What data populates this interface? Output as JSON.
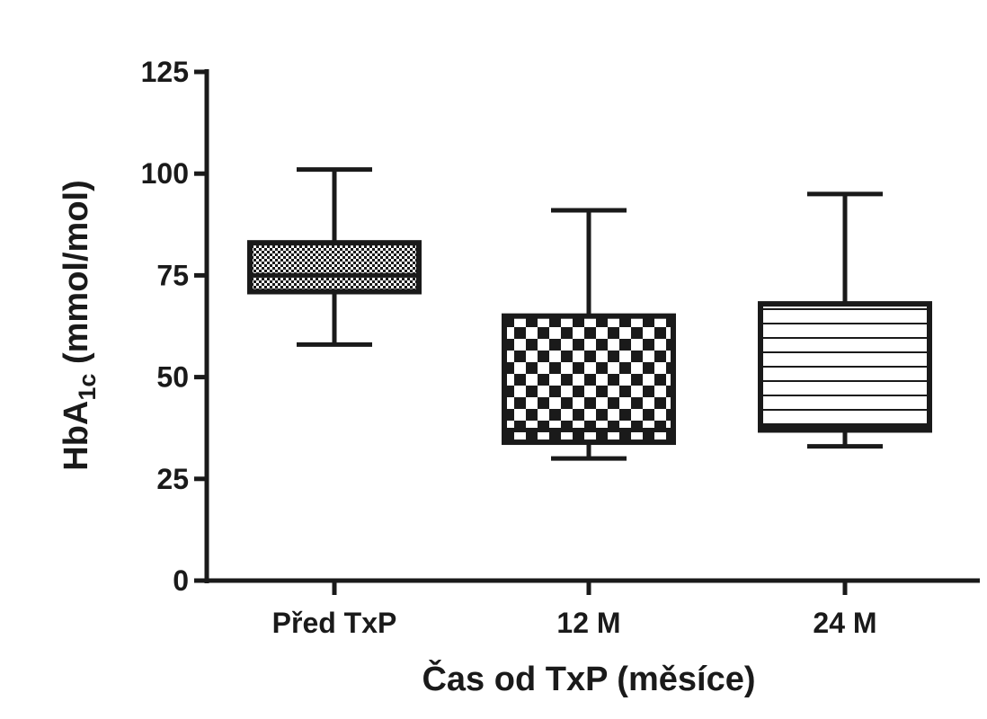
{
  "chart_data": {
    "type": "box",
    "xlabel": "Čas od TxP (měsíce)",
    "ylabel": {
      "main": "HbA",
      "subscript": "1c",
      "unit": " (mmol/mol)"
    },
    "ylim": [
      0,
      125
    ],
    "yticks": [
      0,
      25,
      50,
      75,
      100,
      125
    ],
    "categories": [
      "Před TxP",
      "12 M",
      "24 M"
    ],
    "boxes": [
      {
        "category": "Před TxP",
        "whisker_low": 58,
        "q1": 71,
        "median": 75,
        "q3": 83,
        "whisker_high": 101,
        "pattern": "dots"
      },
      {
        "category": "12 M",
        "whisker_low": 30,
        "q1": 34,
        "median": 37,
        "q3": 65,
        "whisker_high": 91,
        "pattern": "checker"
      },
      {
        "category": "24 M",
        "whisker_low": 33,
        "q1": 37,
        "median": 38,
        "q3": 68,
        "whisker_high": 95,
        "pattern": "hlines"
      }
    ],
    "colors": {
      "ink": "#1a1a1a",
      "background": "#ffffff"
    }
  }
}
